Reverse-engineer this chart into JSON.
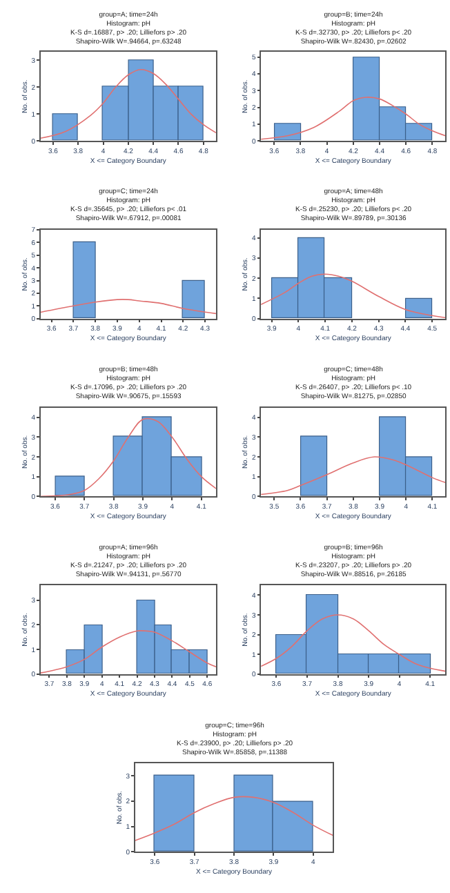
{
  "chart_data": [
    {
      "type": "histogram",
      "title": "group=A; time=24h",
      "subtitle": "Histogram: pH\nK-S d=.16887, p> .20; Lilliefors p> .20\nShapiro-Wilk W=.94664, p=.63248",
      "xlabel": "X <= Category Boundary",
      "ylabel": "No. of obs.",
      "color": "#6fa3dc",
      "bins": [
        3.6,
        3.8,
        4.0,
        4.2,
        4.4,
        4.6,
        4.8
      ],
      "values": [
        1,
        0,
        2,
        3,
        2,
        2
      ],
      "xlim": [
        3.5,
        4.9
      ],
      "xticks": [
        3.6,
        3.8,
        4.0,
        4.2,
        4.4,
        4.6,
        4.8
      ],
      "ylim": [
        0,
        3.3
      ],
      "yticks": [
        0,
        1,
        2,
        3
      ],
      "series": [
        {
          "type": "line",
          "color": "#e07070",
          "x": [
            3.5,
            3.7,
            3.9,
            4.0,
            4.1,
            4.2,
            4.3,
            4.4,
            4.5,
            4.6,
            4.7,
            4.8,
            4.9
          ],
          "values": [
            0.1,
            0.35,
            0.95,
            1.4,
            2.0,
            2.45,
            2.65,
            2.5,
            2.1,
            1.55,
            1.0,
            0.6,
            0.3
          ]
        }
      ]
    },
    {
      "type": "histogram",
      "title": "group=B; time=24h",
      "subtitle": "Histogram: pH\nK-S d=.32730, p> .20; Lilliefors p< .20\nShapiro-Wilk W=.82430, p=.02602",
      "xlabel": "X <= Category Boundary",
      "ylabel": "No. of obs.",
      "color": "#6fa3dc",
      "bins": [
        3.6,
        3.8,
        4.0,
        4.2,
        4.4,
        4.6,
        4.8
      ],
      "values": [
        1,
        0,
        0,
        5,
        2,
        1
      ],
      "xlim": [
        3.5,
        4.9
      ],
      "xticks": [
        3.6,
        3.8,
        4.0,
        4.2,
        4.4,
        4.6,
        4.8
      ],
      "ylim": [
        0,
        5.3
      ],
      "yticks": [
        0,
        1,
        2,
        3,
        4,
        5
      ],
      "series": [
        {
          "type": "line",
          "color": "#e07070",
          "x": [
            3.5,
            3.7,
            3.9,
            4.1,
            4.2,
            4.3,
            4.4,
            4.5,
            4.6,
            4.7,
            4.8,
            4.9
          ],
          "values": [
            0.1,
            0.3,
            0.8,
            1.8,
            2.4,
            2.6,
            2.5,
            2.1,
            1.6,
            1.0,
            0.6,
            0.3
          ]
        }
      ]
    },
    {
      "type": "histogram",
      "title": "group=C; time=24h",
      "subtitle": "Histogram: pH\nK-S d=.35645, p> .20; Lilliefors p< .01\nShapiro-Wilk W=.67912, p=.00081",
      "xlabel": "X <= Category Boundary",
      "ylabel": "No. of obs.",
      "color": "#6fa3dc",
      "bins": [
        3.7,
        3.8,
        3.9,
        4.0,
        4.1,
        4.2,
        4.3
      ],
      "values": [
        6,
        0,
        0,
        0,
        0,
        3
      ],
      "xlim": [
        3.55,
        4.35
      ],
      "xticks": [
        3.6,
        3.7,
        3.8,
        3.9,
        4.0,
        4.1,
        4.2,
        4.3
      ],
      "ylim": [
        0,
        7
      ],
      "yticks": [
        0,
        1,
        2,
        3,
        4,
        5,
        6,
        7
      ],
      "series": [
        {
          "type": "line",
          "color": "#e07070",
          "x": [
            3.55,
            3.7,
            3.8,
            3.9,
            3.95,
            4.0,
            4.1,
            4.2,
            4.35
          ],
          "values": [
            0.5,
            1.0,
            1.3,
            1.5,
            1.5,
            1.4,
            1.2,
            0.8,
            0.4
          ]
        }
      ]
    },
    {
      "type": "histogram",
      "title": "group=A; time=48h",
      "subtitle": "Histogram: pH\nK-S d=.25230, p> .20; Lilliefors p< .20\nShapiro-Wilk W=.89789, p=.30136",
      "xlabel": "X <= Category Boundary",
      "ylabel": "No. of obs.",
      "color": "#6fa3dc",
      "bins": [
        3.9,
        4.0,
        4.1,
        4.2,
        4.3,
        4.4,
        4.5
      ],
      "values": [
        2,
        4,
        2,
        0,
        0,
        1
      ],
      "xlim": [
        3.86,
        4.55
      ],
      "xticks": [
        3.9,
        4.0,
        4.1,
        4.2,
        4.3,
        4.4,
        4.5
      ],
      "ylim": [
        0,
        4.4
      ],
      "yticks": [
        0,
        1,
        2,
        3,
        4
      ],
      "series": [
        {
          "type": "line",
          "color": "#e07070",
          "x": [
            3.86,
            3.95,
            4.0,
            4.05,
            4.1,
            4.15,
            4.2,
            4.3,
            4.4,
            4.5,
            4.55
          ],
          "values": [
            0.7,
            1.3,
            1.75,
            2.1,
            2.2,
            2.1,
            1.85,
            1.1,
            0.45,
            0.15,
            0.05
          ]
        }
      ]
    },
    {
      "type": "histogram",
      "title": "group=B; time=48h",
      "subtitle": "Histogram: pH\nK-S d=.17096, p> .20; Lilliefors p> .20\nShapiro-Wilk W=.90675, p=.15593",
      "xlabel": "X <= Category Boundary",
      "ylabel": "No. of obs.",
      "color": "#6fa3dc",
      "bins": [
        3.6,
        3.7,
        3.8,
        3.9,
        4.0,
        4.1
      ],
      "values": [
        1,
        0,
        3,
        4,
        2
      ],
      "xlim": [
        3.55,
        4.15
      ],
      "xticks": [
        3.6,
        3.7,
        3.8,
        3.9,
        4.0,
        4.1
      ],
      "ylim": [
        0,
        4.5
      ],
      "yticks": [
        0,
        1,
        2,
        3,
        4
      ],
      "series": [
        {
          "type": "line",
          "color": "#e07070",
          "x": [
            3.55,
            3.65,
            3.7,
            3.75,
            3.8,
            3.85,
            3.9,
            3.95,
            4.0,
            4.05,
            4.1,
            4.15
          ],
          "values": [
            0.0,
            0.1,
            0.3,
            0.9,
            1.8,
            3.0,
            3.9,
            3.8,
            3.0,
            1.9,
            1.0,
            0.4
          ]
        }
      ]
    },
    {
      "type": "histogram",
      "title": "group=C; time=48h",
      "subtitle": "Histogram: pH\nK-S d=.26407, p> .20; Lilliefors p< .10\nShapiro-Wilk W=.81275, p=.02850",
      "xlabel": "X <= Category Boundary",
      "ylabel": "No. of obs.",
      "color": "#6fa3dc",
      "bins": [
        3.6,
        3.7,
        3.8,
        3.9,
        4.0,
        4.1
      ],
      "values": [
        3,
        0,
        0,
        4,
        2
      ],
      "xlim": [
        3.45,
        4.15
      ],
      "xticks": [
        3.5,
        3.6,
        3.7,
        3.8,
        3.9,
        4.0,
        4.1
      ],
      "ylim": [
        0,
        4.5
      ],
      "yticks": [
        0,
        1,
        2,
        3,
        4
      ],
      "series": [
        {
          "type": "line",
          "color": "#e07070",
          "x": [
            3.45,
            3.55,
            3.6,
            3.7,
            3.8,
            3.88,
            3.95,
            4.0,
            4.1,
            4.15
          ],
          "values": [
            0.1,
            0.3,
            0.55,
            1.1,
            1.7,
            2.0,
            1.85,
            1.6,
            0.95,
            0.7
          ]
        }
      ]
    },
    {
      "type": "histogram",
      "title": "group=A; time=96h",
      "subtitle": "Histogram: pH\nK-S d=.21247, p> .20; Lilliefors p> .20\nShapiro-Wilk W=.94131, p=.56770",
      "xlabel": "X <= Category Boundary",
      "ylabel": "No. of obs.",
      "color": "#6fa3dc",
      "bins": [
        3.8,
        3.9,
        4.0,
        4.1,
        4.2,
        4.3,
        4.4,
        4.5,
        4.6
      ],
      "values": [
        1,
        2,
        0,
        0,
        3,
        2,
        1,
        1
      ],
      "xlim": [
        3.65,
        4.65
      ],
      "xticks": [
        3.7,
        3.8,
        3.9,
        4.0,
        4.1,
        4.2,
        4.3,
        4.4,
        4.5,
        4.6
      ],
      "ylim": [
        0,
        3.6
      ],
      "yticks": [
        0,
        1,
        2,
        3
      ],
      "series": [
        {
          "type": "line",
          "color": "#e07070",
          "x": [
            3.65,
            3.8,
            3.9,
            4.0,
            4.1,
            4.2,
            4.25,
            4.3,
            4.4,
            4.5,
            4.6,
            4.65
          ],
          "values": [
            0.05,
            0.3,
            0.6,
            1.1,
            1.5,
            1.75,
            1.75,
            1.7,
            1.35,
            0.9,
            0.45,
            0.3
          ]
        }
      ]
    },
    {
      "type": "histogram",
      "title": "group=B; time=96h",
      "subtitle": "Histogram: pH\nK-S d=.23207, p> .20; Lilliefors p> .20\nShapiro-Wilk W=.88516, p=.26185",
      "xlabel": "X <= Category Boundary",
      "ylabel": "No. of obs.",
      "color": "#6fa3dc",
      "bins": [
        3.6,
        3.7,
        3.8,
        3.9,
        4.0,
        4.1
      ],
      "values": [
        2,
        4,
        1,
        1,
        1
      ],
      "xlim": [
        3.55,
        4.15
      ],
      "xticks": [
        3.6,
        3.7,
        3.8,
        3.9,
        4.0,
        4.1
      ],
      "ylim": [
        0,
        4.5
      ],
      "yticks": [
        0,
        1,
        2,
        3,
        4
      ],
      "series": [
        {
          "type": "line",
          "color": "#e07070",
          "x": [
            3.55,
            3.6,
            3.65,
            3.7,
            3.75,
            3.8,
            3.85,
            3.9,
            3.95,
            4.0,
            4.05,
            4.1,
            4.15
          ],
          "values": [
            0.4,
            0.8,
            1.4,
            2.2,
            2.8,
            3.0,
            2.8,
            2.2,
            1.5,
            1.0,
            0.55,
            0.3,
            0.15
          ]
        }
      ]
    },
    {
      "type": "histogram",
      "title": "group=C; time=96h",
      "subtitle": "Histogram: pH\nK-S d=.23900, p> .20; Lilliefors p> .20\nShapiro-Wilk W=.85858, p=.11388",
      "xlabel": "X <= Category Boundary",
      "ylabel": "No. of obs.",
      "color": "#6fa3dc",
      "bins": [
        3.6,
        3.7,
        3.8,
        3.9,
        4.0
      ],
      "values": [
        3,
        0,
        3,
        2
      ],
      "xlim": [
        3.55,
        4.05
      ],
      "xticks": [
        3.6,
        3.7,
        3.8,
        3.9,
        4.0
      ],
      "ylim": [
        0,
        3.5
      ],
      "yticks": [
        0,
        1,
        2,
        3
      ],
      "series": [
        {
          "type": "line",
          "color": "#e07070",
          "x": [
            3.55,
            3.6,
            3.65,
            3.7,
            3.75,
            3.8,
            3.85,
            3.9,
            3.95,
            4.0,
            4.05
          ],
          "values": [
            0.45,
            0.75,
            1.1,
            1.55,
            1.9,
            2.15,
            2.15,
            1.95,
            1.55,
            1.05,
            0.65
          ]
        }
      ]
    }
  ]
}
